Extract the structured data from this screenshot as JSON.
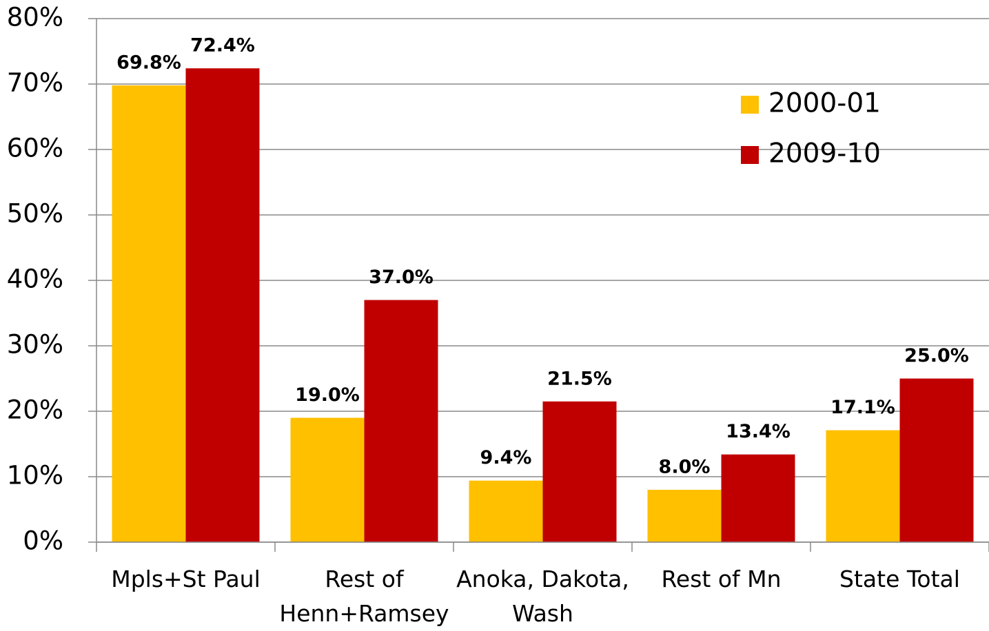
{
  "chart_data": {
    "type": "bar",
    "categories": [
      "Mpls+St Paul",
      "Rest of Henn+Ramsey",
      "Anoka, Dakota, Wash",
      "Rest of Mn",
      "State Total"
    ],
    "series": [
      {
        "name": "2000-01",
        "color": "#FFC000",
        "values": [
          69.8,
          19.0,
          9.4,
          8.0,
          17.1
        ],
        "value_labels": [
          "69.8%",
          "19.0%",
          "9.4%",
          "8.0%",
          "17.1%"
        ]
      },
      {
        "name": "2009-10",
        "color": "#C00000",
        "values": [
          72.4,
          37.0,
          21.5,
          13.4,
          25.0
        ],
        "value_labels": [
          "72.4%",
          "37.0%",
          "21.5%",
          "13.4%",
          "25.0%"
        ]
      }
    ],
    "ylim": [
      0,
      80
    ],
    "yticks": [
      {
        "value": 0,
        "label": "0%"
      },
      {
        "value": 10,
        "label": "10%"
      },
      {
        "value": 20,
        "label": "20%"
      },
      {
        "value": 30,
        "label": "30%"
      },
      {
        "value": 40,
        "label": "40%"
      },
      {
        "value": 50,
        "label": "50%"
      },
      {
        "value": 60,
        "label": "60%"
      },
      {
        "value": 70,
        "label": "70%"
      },
      {
        "value": 80,
        "label": "80%"
      }
    ],
    "grid": true,
    "legend": "upper right"
  }
}
